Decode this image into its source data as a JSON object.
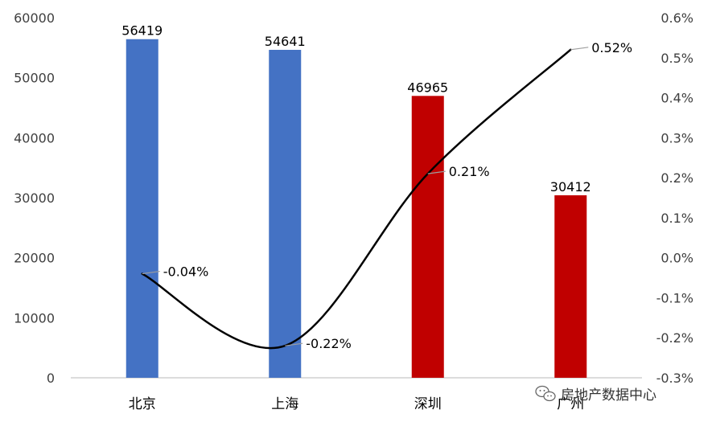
{
  "chart_data": {
    "type": "bar",
    "categories": [
      "北京",
      "上海",
      "深圳",
      "广州"
    ],
    "series": [
      {
        "type": "bar",
        "axis": "left",
        "values": [
          56419,
          54641,
          46965,
          30412
        ],
        "colors": [
          "#4472C4",
          "#4472C4",
          "#C00000",
          "#C00000"
        ]
      },
      {
        "type": "line",
        "axis": "right",
        "values": [
          -0.04,
          -0.22,
          0.21,
          0.52
        ],
        "labels": [
          "-0.04%",
          "-0.22%",
          "0.21%",
          "0.52%"
        ],
        "color": "#000000",
        "smooth": true
      }
    ],
    "y_left": {
      "lim": [
        0,
        60000
      ],
      "ticks": [
        "0",
        "10000",
        "20000",
        "30000",
        "40000",
        "50000",
        "60000"
      ]
    },
    "y_right": {
      "lim": [
        -0.3,
        0.6
      ],
      "ticks": [
        "-0.3%",
        "-0.2%",
        "-0.1%",
        "0.0%",
        "0.1%",
        "0.2%",
        "0.3%",
        "0.4%",
        "0.5%",
        "0.6%"
      ]
    },
    "bar_labels": [
      "56419",
      "54641",
      "46965",
      "30412"
    ],
    "grid": false,
    "title": "",
    "xlabel": "",
    "ylabel": ""
  },
  "watermark": {
    "text": "房地产数据中心",
    "icon": "wechat-icon"
  }
}
